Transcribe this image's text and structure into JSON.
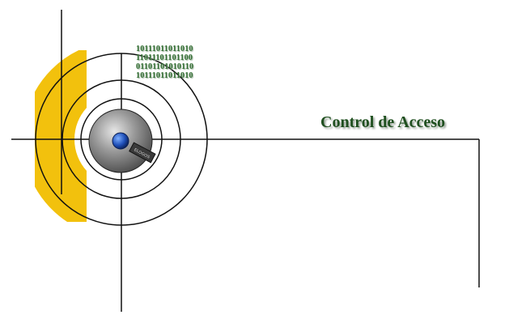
{
  "header": {
    "title": "Control de Acceso"
  },
  "binary_lines": [
    "10111011011010",
    "11011101101100",
    "01101101010110",
    "10111011011010"
  ],
  "knob": {
    "tag_text": "ELOGOS"
  },
  "colors": {
    "accent_yellow": "#f2c10d",
    "line": "#111111",
    "title_green": "#1f4f1f",
    "binary_green": "#2e6b2e",
    "knob_gray": "#8f8f8f",
    "knob_dot": "#1f4fb8"
  }
}
